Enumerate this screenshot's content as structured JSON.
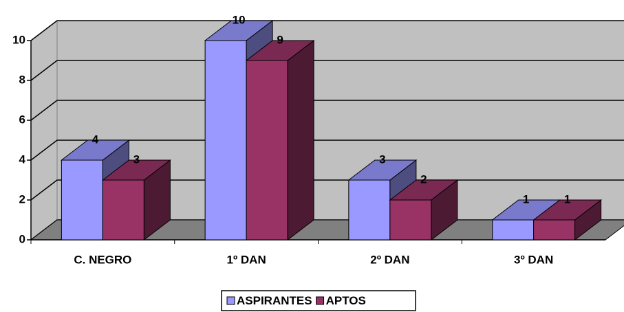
{
  "chart_data": {
    "type": "bar3d",
    "categories": [
      "C. NEGRO",
      "1º DAN",
      "2º DAN",
      "3º DAN"
    ],
    "series": [
      {
        "name": "ASPIRANTES",
        "color": "#9999ff",
        "values": [
          4,
          10,
          3,
          1
        ]
      },
      {
        "name": "APTOS",
        "color": "#993366",
        "values": [
          3,
          9,
          2,
          1
        ]
      }
    ],
    "ylim": [
      0,
      10
    ],
    "yticks": [
      0,
      2,
      4,
      6,
      8,
      10
    ],
    "grid": true,
    "legend": "bottom"
  }
}
